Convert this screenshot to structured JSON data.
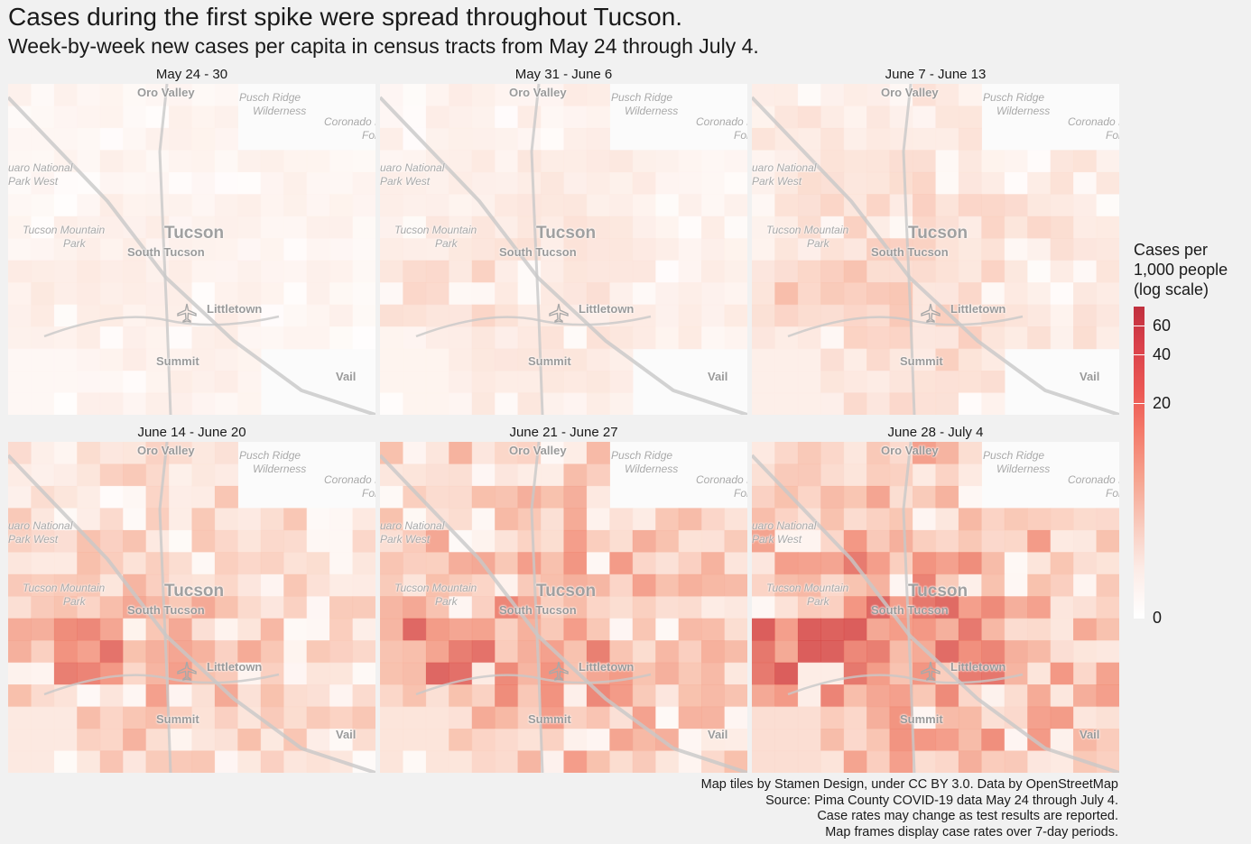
{
  "title": "Cases during the first spike were spread throughout Tucson.",
  "subtitle": "Week-by-week new cases per capita in census tracts from May 24 through July 4.",
  "panels": [
    {
      "label": "May 24 - 30",
      "intensity": 0.15
    },
    {
      "label": "May 31 - June 6",
      "intensity": 0.22
    },
    {
      "label": "June 7 - June 13",
      "intensity": 0.3
    },
    {
      "label": "June 14 - June 20",
      "intensity": 0.42
    },
    {
      "label": "June 21 - June 27",
      "intensity": 0.5
    },
    {
      "label": "June 28 - July 4",
      "intensity": 0.56
    }
  ],
  "places": {
    "oro_valley": "Oro Valley",
    "pusch_ridge": [
      "Pusch Ridge",
      "Wilderness"
    ],
    "coronado": [
      "Coronado I",
      "Fore."
    ],
    "saguaro": [
      "uaro National",
      "Park West"
    ],
    "tucson_mountain": [
      "Tucson Mountain",
      "Park"
    ],
    "tucson": "Tucson",
    "south_tucson": "South Tucson",
    "littletown": "Littletown",
    "summit": "Summit",
    "vail": "Vail"
  },
  "legend": {
    "title": "Cases per\n1,000 people\n(log scale)",
    "ticks": [
      {
        "label": "60",
        "pos": 0.06
      },
      {
        "label": "40",
        "pos": 0.155
      },
      {
        "label": "20",
        "pos": 0.31
      },
      {
        "label": "0",
        "pos": 1.0
      }
    ],
    "colors": {
      "high": "#c0303e",
      "mid": "#f47a6a",
      "low": "#ffffff"
    }
  },
  "caption": [
    "Map tiles by Stamen Design, under CC BY 3.0. Data by OpenStreetMap",
    "Source: Pima County COVID-19 data May 24 through July 4.",
    "Case rates may change as test results are reported.",
    "Map frames display case rates over 7-day periods."
  ]
}
